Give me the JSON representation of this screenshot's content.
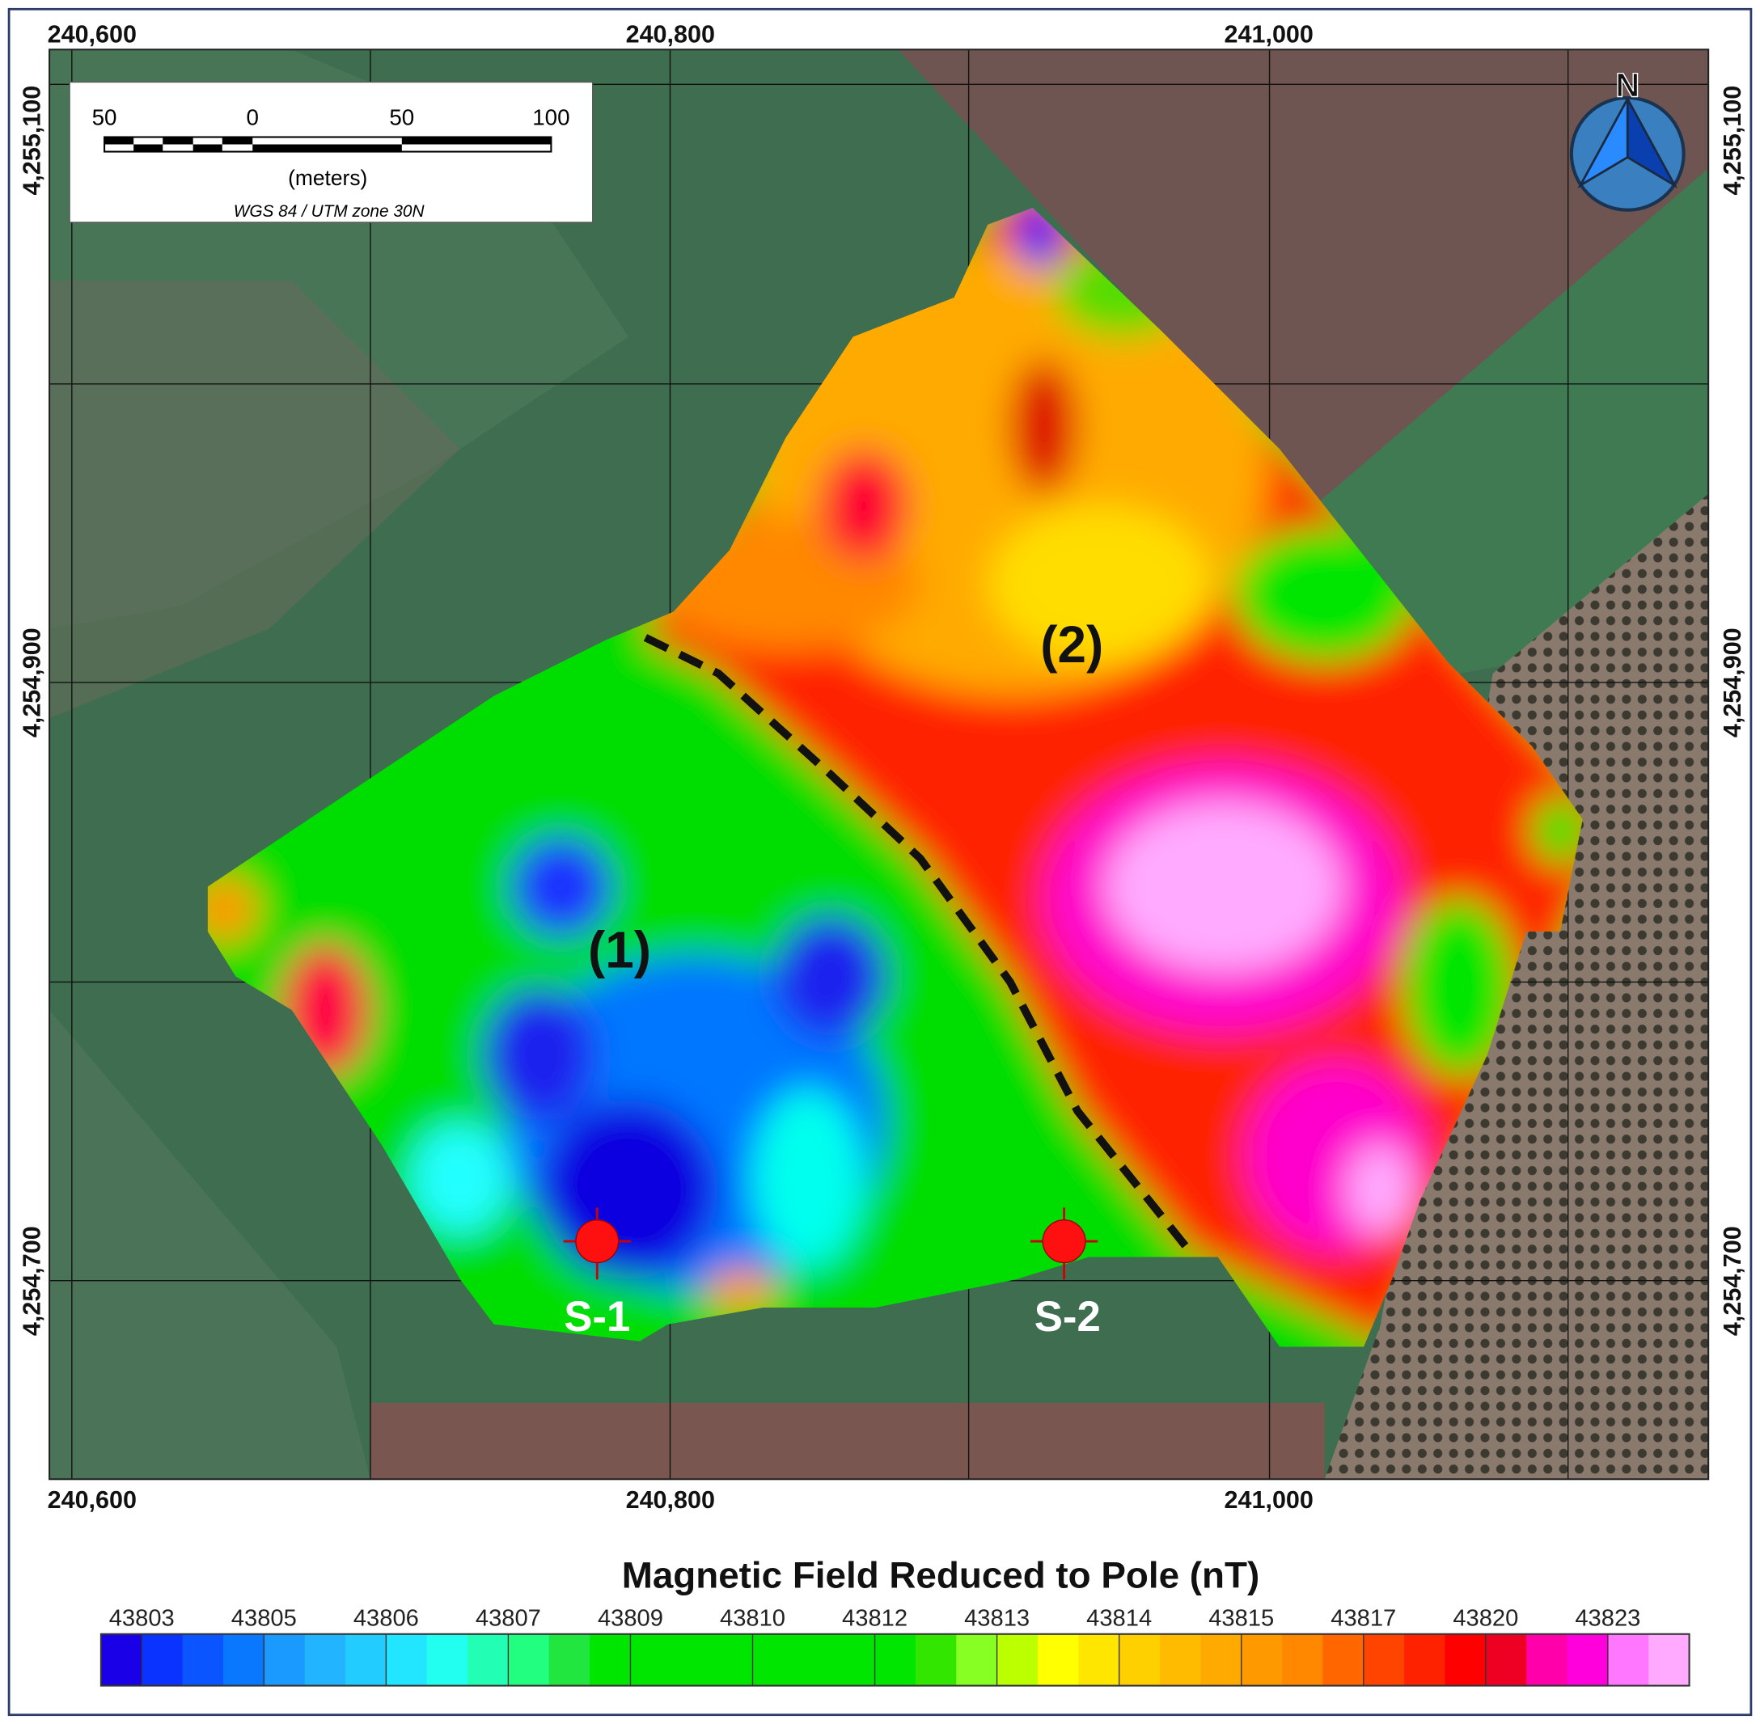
{
  "map": {
    "x_ticks": [
      {
        "value": 240600,
        "label": "240,600"
      },
      {
        "value": 240800,
        "label": "240,800"
      },
      {
        "value": 241000,
        "label": "241,000"
      }
    ],
    "y_ticks": [
      {
        "value": 4255100,
        "label": "4,255,100"
      },
      {
        "value": 4254900,
        "label": "4,254,900"
      },
      {
        "value": 4254700,
        "label": "4,254,700"
      }
    ],
    "scale_bar": {
      "labels": [
        50,
        0,
        50,
        100
      ],
      "unit": "(meters)",
      "projection": "WGS 84 / UTM zone 30N"
    },
    "north": "N",
    "zones": [
      "(1)",
      "(2)"
    ],
    "stations": [
      "S-1",
      "S-2"
    ]
  },
  "legend": {
    "title": "Magnetic Field Reduced to Pole (nT)",
    "ticks": [
      43803,
      43805,
      43806,
      43807,
      43809,
      43810,
      43812,
      43813,
      43814,
      43815,
      43817,
      43820,
      43823
    ],
    "colors": [
      "#1a00e6",
      "#0a33ff",
      "#0a55ff",
      "#0a77ff",
      "#1a99ff",
      "#22b4ff",
      "#22ccff",
      "#22e6ff",
      "#22fff0",
      "#22ffb4",
      "#22ff80",
      "#22e640",
      "#00e600",
      "#00e600",
      "#00e600",
      "#00e600",
      "#00e600",
      "#00e600",
      "#00e600",
      "#00e600",
      "#33e600",
      "#88ff22",
      "#bbff00",
      "#ffff00",
      "#ffe600",
      "#ffd000",
      "#ffbb00",
      "#ffaa00",
      "#ff9900",
      "#ff8800",
      "#ff6600",
      "#ff4400",
      "#ff2200",
      "#ff0000",
      "#ee0022",
      "#ff00aa",
      "#ff00dd",
      "#ff77ff",
      "#ffaaff"
    ]
  }
}
